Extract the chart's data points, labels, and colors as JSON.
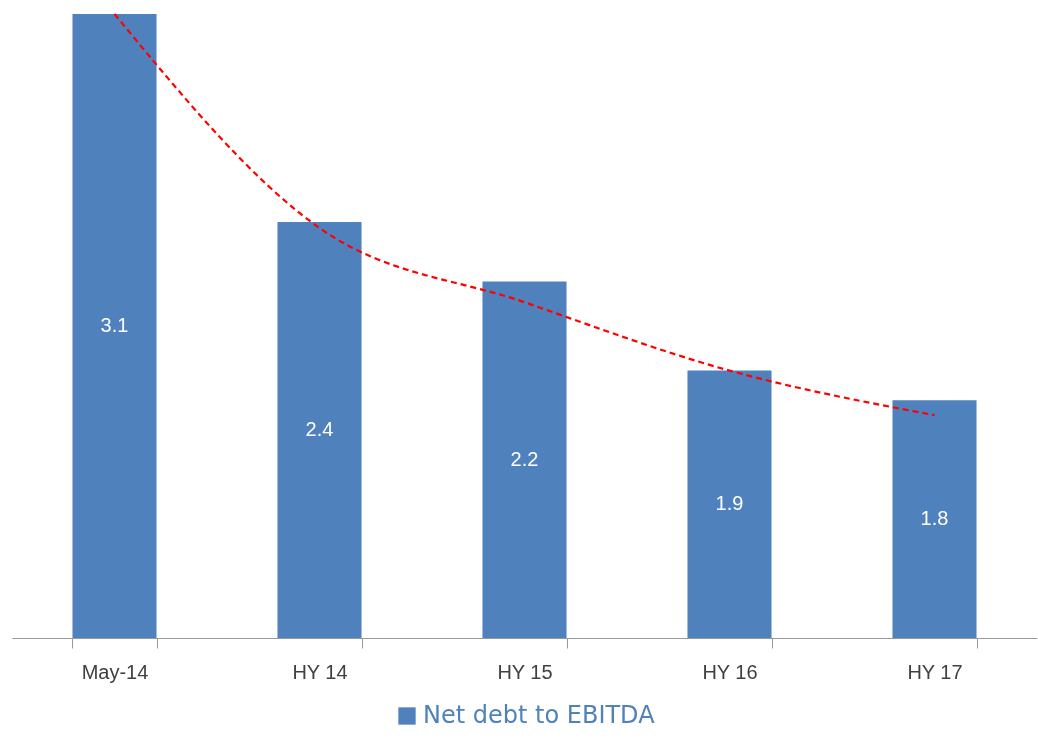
{
  "chart_data": {
    "type": "bar",
    "categories": [
      "May-14",
      "HY 14",
      "HY 15",
      "HY 16",
      "HY 17"
    ],
    "series": [
      {
        "name": "Net debt to EBITDA",
        "color": "#4f81bd",
        "values": [
          3.1,
          2.4,
          2.2,
          1.9,
          1.8
        ],
        "value_labels": [
          "3.1",
          "2.4",
          "2.2",
          "1.9",
          "1.8"
        ]
      },
      {
        "type": "line",
        "color": "#ff0000",
        "x": [
          "May-14",
          "HY 14",
          "HY 15",
          "HY 16",
          "HY 17"
        ],
        "values": [
          3.1,
          2.38,
          2.13,
          1.9,
          1.75
        ],
        "line_style": "dashed",
        "marker": "none"
      }
    ],
    "ylim": [
      1,
      3.1
    ],
    "tick_labels": "x",
    "legend": "bottom",
    "grid": false
  }
}
